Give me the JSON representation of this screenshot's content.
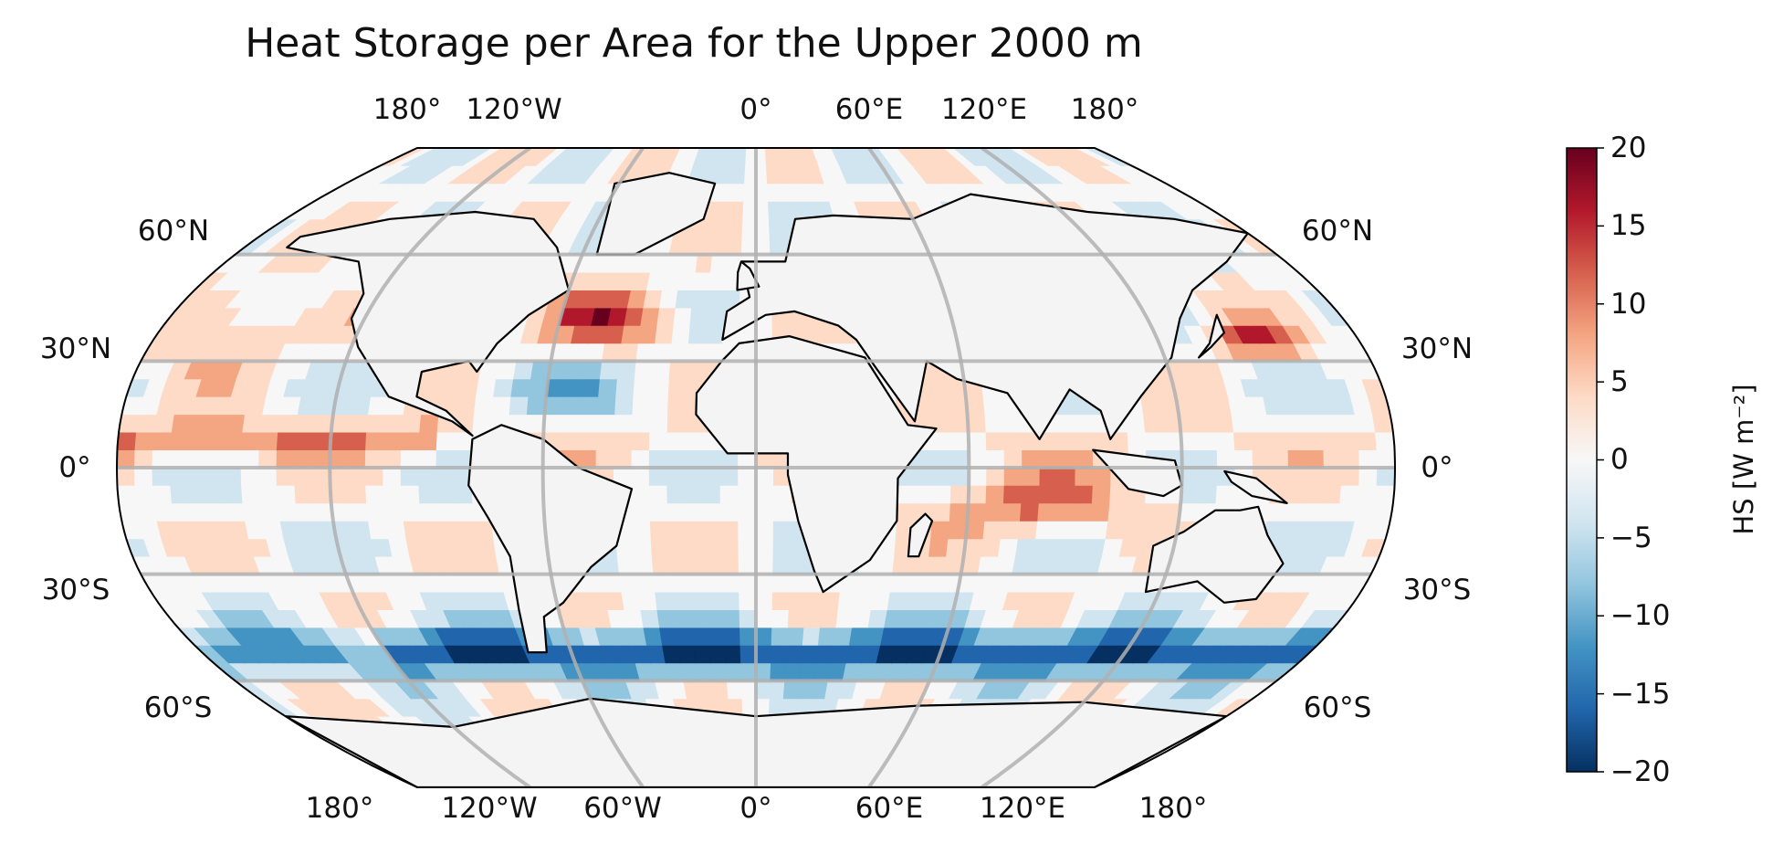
{
  "title": "Heat Storage per Area for the Upper 2000 m",
  "top_lon_labels": [
    "180°",
    "120°W",
    "0°",
    "60°E",
    "120°E",
    "180°"
  ],
  "bottom_lon_labels": [
    "180°",
    "120°W",
    "60°W",
    "0°",
    "60°E",
    "120°E",
    "180°"
  ],
  "left_lat_labels": [
    "60°N",
    "30°N",
    "0°",
    "30°S",
    "60°S"
  ],
  "right_lat_labels": [
    "60°N",
    "30°N",
    "0°",
    "30°S",
    "60°S"
  ],
  "colorbar": {
    "label": "HS [W m⁻²]",
    "colormap": "RdBu_r",
    "range": [
      -20,
      20
    ],
    "ticks": [
      "20",
      "15",
      "10",
      "5",
      "0",
      "−5",
      "−10",
      "−15",
      "−20"
    ],
    "colors": [
      "#053061",
      "#2166ac",
      "#4393c3",
      "#92c5de",
      "#d1e5f0",
      "#f7f7f7",
      "#fddbc7",
      "#f4a582",
      "#d6604d",
      "#b2182b",
      "#67001f"
    ]
  },
  "map": {
    "projection": "Robinson",
    "land_color": "#f4f4f4",
    "coastline_color": "#000000",
    "gridline_color": "#b0b0b0"
  }
}
